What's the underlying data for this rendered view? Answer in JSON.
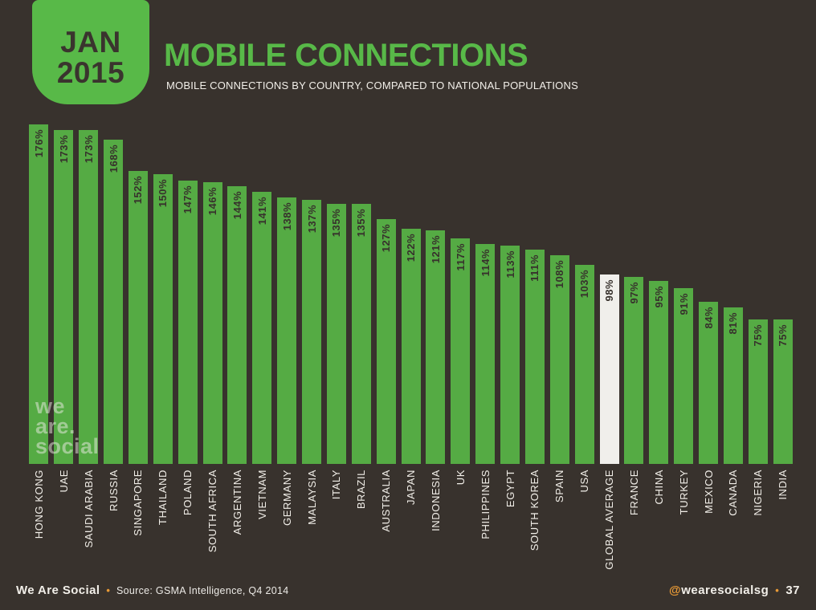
{
  "page": {
    "background_color": "#38322d"
  },
  "header": {
    "badge": {
      "line1": "JAN",
      "line2": "2015",
      "background_color": "#58b948",
      "text_color": "#3a342e"
    },
    "title": "MOBILE CONNECTIONS",
    "subtitle": "MOBILE CONNECTIONS BY COUNTRY, COMPARED TO NATIONAL POPULATIONS",
    "title_color": "#58b948"
  },
  "watermark": {
    "lines": [
      "we",
      "are.",
      "social"
    ]
  },
  "chart_data": {
    "type": "bar",
    "title": "MOBILE CONNECTIONS",
    "subtitle": "MOBILE CONNECTIONS BY COUNTRY, COMPARED TO NATIONAL POPULATIONS",
    "unit": "%",
    "categories": [
      "HONG KONG",
      "UAE",
      "SAUDI ARABIA",
      "RUSSIA",
      "SINGAPORE",
      "THAILAND",
      "POLAND",
      "SOUTH AFRICA",
      "ARGENTINA",
      "VIETNAM",
      "GERMANY",
      "MALAYSIA",
      "ITALY",
      "BRAZIL",
      "AUSTRALIA",
      "JAPAN",
      "INDONESIA",
      "UK",
      "PHILIPPINES",
      "EGYPT",
      "SOUTH KOREA",
      "SPAIN",
      "USA",
      "GLOBAL AVERAGE",
      "FRANCE",
      "CHINA",
      "TURKEY",
      "MEXICO",
      "CANADA",
      "NIGERIA",
      "INDIA"
    ],
    "values": [
      176,
      173,
      173,
      168,
      152,
      150,
      147,
      146,
      144,
      141,
      138,
      137,
      135,
      135,
      127,
      122,
      121,
      117,
      114,
      113,
      111,
      108,
      103,
      98,
      97,
      95,
      91,
      84,
      81,
      75,
      75
    ],
    "value_labels": [
      "176%",
      "173%",
      "173%",
      "168%",
      "152%",
      "150%",
      "147%",
      "146%",
      "144%",
      "141%",
      "138%",
      "137%",
      "135%",
      "135%",
      "127%",
      "122%",
      "121%",
      "117%",
      "114%",
      "113%",
      "111%",
      "108%",
      "103%",
      "98%",
      "97%",
      "95%",
      "91%",
      "84%",
      "81%",
      "75%",
      "75%"
    ],
    "highlight_index": 23,
    "highlight_category": "GLOBAL AVERAGE",
    "bar_color": "#55ab44",
    "highlight_color": "#f0efeb",
    "value_label_color": "#37312c",
    "category_label_color": "#f2efe9",
    "ylim": [
      0,
      176
    ],
    "grid": false,
    "legend": false,
    "orientation": "vertical",
    "value_label_position": "inside-top-rotated",
    "category_label_position": "below-rotated"
  },
  "footer": {
    "brand": "We Are Social",
    "separator": "•",
    "source": "Source: GSMA Intelligence, Q4 2014",
    "handle_prefix": "@",
    "handle_name": "wearesocialsg",
    "page_number": "37",
    "accent_color": "#e89a36"
  }
}
